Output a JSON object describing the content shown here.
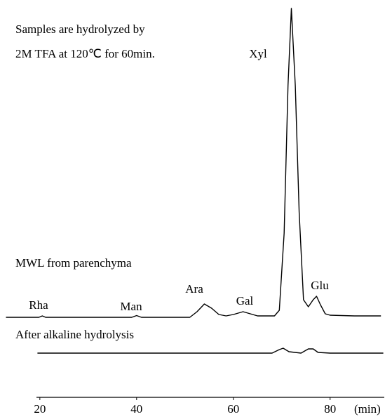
{
  "chart_data": {
    "type": "line",
    "annotations": [
      "Samples are hydrolyzed by",
      "2M TFA at 120℃ for 60min."
    ],
    "peaks": [
      "Rha",
      "Man",
      "Ara",
      "Gal",
      "Xyl",
      "Glu"
    ],
    "xlabel": "(min)",
    "xlim": [
      19.3,
      91.2
    ],
    "xticks": [
      20,
      40,
      60,
      80
    ],
    "ylim": [
      0,
      440
    ],
    "series": [
      {
        "name": "MWL from parenchyma",
        "color": "#000000",
        "x": [
          13,
          19.8,
          20.5,
          21.2,
          39,
          40,
          41,
          51,
          52.5,
          54,
          55.5,
          57,
          58.5,
          60,
          62,
          63.5,
          65,
          68.5,
          69.5,
          70.5,
          71.3,
          72,
          72.8,
          73.6,
          74.5,
          75.5,
          76.5,
          77.2,
          78,
          79,
          80,
          85,
          90.5
        ],
        "values": [
          0,
          0,
          2,
          0,
          0,
          2.5,
          0,
          0,
          8,
          19,
          13,
          4,
          2,
          4,
          8,
          5,
          2,
          2,
          10,
          120,
          330,
          440,
          330,
          150,
          25,
          15,
          25,
          30,
          18,
          5,
          3,
          2,
          2
        ]
      },
      {
        "name": "After alkaline hydrolysis",
        "color": "#000000",
        "x": [
          19.5,
          68,
          69.5,
          70.3,
          71.5,
          74,
          75.5,
          76.5,
          77.5,
          80,
          91
        ],
        "values": [
          0,
          0,
          5,
          7,
          2,
          0,
          6,
          6,
          1,
          0,
          0
        ]
      }
    ]
  }
}
